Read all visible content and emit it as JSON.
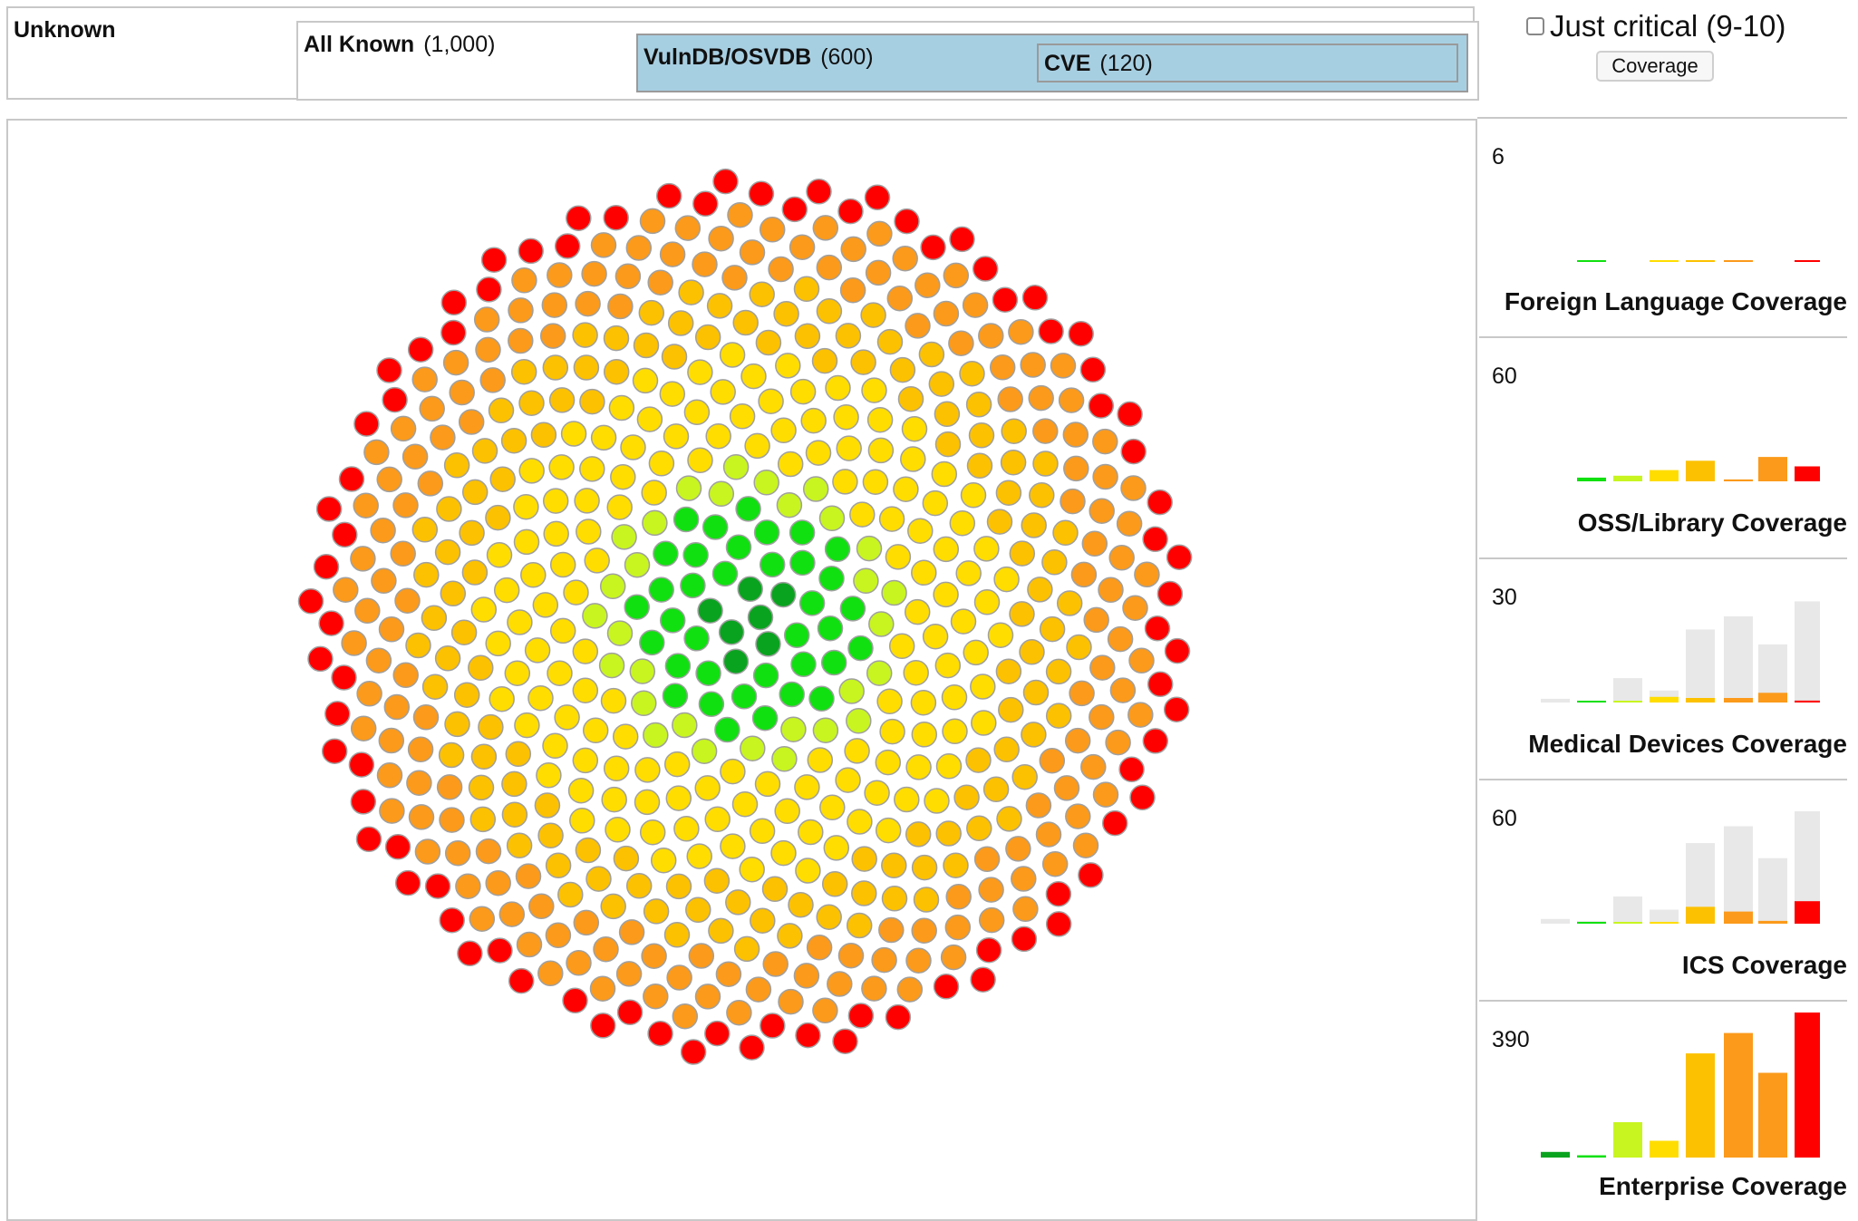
{
  "hierarchy": {
    "unknown": {
      "label": "Unknown"
    },
    "all_known": {
      "label": "All Known",
      "count": "(1,000)"
    },
    "vulndb": {
      "label": "VulnDB/OSVDB",
      "count": "(600)"
    },
    "cve": {
      "label": "CVE",
      "count": "(120)"
    }
  },
  "controls": {
    "critical_label": "Just critical (9-10)",
    "critical_checked": false,
    "coverage_button": "Coverage"
  },
  "colors": {
    "dark_green": "#0aa31f",
    "green": "#10e010",
    "lime": "#c8f520",
    "yellow": "#ffdd00",
    "gold": "#fcc100",
    "orange": "#fb9a1b",
    "red": "#ff0000",
    "context_gray": "#e8e8e8",
    "bubble_stroke": "#a0a0a0",
    "selected_fill": "#a7cfe2"
  },
  "chart_data": [
    {
      "type": "scatter",
      "name": "vulnerability-bubbles",
      "bubble_count": 600,
      "color_rings": [
        {
          "class": "dark_green",
          "share": 0.012
        },
        {
          "class": "green",
          "share": 0.06
        },
        {
          "class": "lime",
          "share": 0.05
        },
        {
          "class": "yellow",
          "share": 0.24
        },
        {
          "class": "gold",
          "share": 0.22
        },
        {
          "class": "orange",
          "share": 0.28
        },
        {
          "class": "red",
          "share": 0.138
        }
      ]
    },
    {
      "type": "bar",
      "title": "Foreign Language Coverage",
      "ymax_label": "6",
      "ymax": 6,
      "categories": [
        "dark_green",
        "green",
        "lime",
        "yellow",
        "gold",
        "orange",
        "orange_thin",
        "red"
      ],
      "values": [
        0,
        0.02,
        0,
        0.01,
        0.01,
        0.08,
        0,
        0.03
      ],
      "context": [
        0,
        0,
        0,
        0,
        0,
        0,
        0,
        0
      ]
    },
    {
      "type": "bar",
      "title": "OSS/Library Coverage",
      "ymax_label": "60",
      "ymax": 60,
      "categories": [
        "dark_green",
        "green",
        "lime",
        "yellow",
        "gold",
        "orange",
        "orange_thin",
        "red"
      ],
      "values": [
        0,
        2,
        3,
        6,
        11,
        1,
        13,
        8
      ],
      "context": [
        0,
        0,
        0,
        0,
        0,
        0,
        0,
        0
      ]
    },
    {
      "type": "bar",
      "title": "Medical Devices Coverage",
      "ymax_label": "30",
      "ymax": 30,
      "categories": [
        "dark_green",
        "green",
        "lime",
        "yellow",
        "gold",
        "orange",
        "orange_thin",
        "red"
      ],
      "values": [
        0,
        0.3,
        0.2,
        1.5,
        1.2,
        1.2,
        2.6,
        0.5
      ],
      "context": [
        1,
        0.5,
        6.5,
        3.2,
        19.5,
        23,
        15.5,
        27
      ]
    },
    {
      "type": "bar",
      "title": "ICS Coverage",
      "ymax_label": "60",
      "ymax": 60,
      "categories": [
        "dark_green",
        "green",
        "lime",
        "yellow",
        "gold",
        "orange",
        "orange_thin",
        "red"
      ],
      "values": [
        0,
        0.5,
        0.5,
        0.5,
        9,
        6.5,
        1.5,
        12
      ],
      "context": [
        2.5,
        1.5,
        14.5,
        7.5,
        43,
        52,
        35,
        60
      ]
    },
    {
      "type": "bar",
      "title": "Enterprise Coverage",
      "ymax_label": "390",
      "ymax": 390,
      "categories": [
        "dark_green",
        "green",
        "lime",
        "yellow",
        "gold",
        "orange",
        "orange_thin",
        "red"
      ],
      "values": [
        15,
        6,
        95,
        45,
        280,
        335,
        228,
        390
      ],
      "context": [
        0,
        0,
        0,
        0,
        0,
        0,
        0,
        0
      ]
    }
  ]
}
